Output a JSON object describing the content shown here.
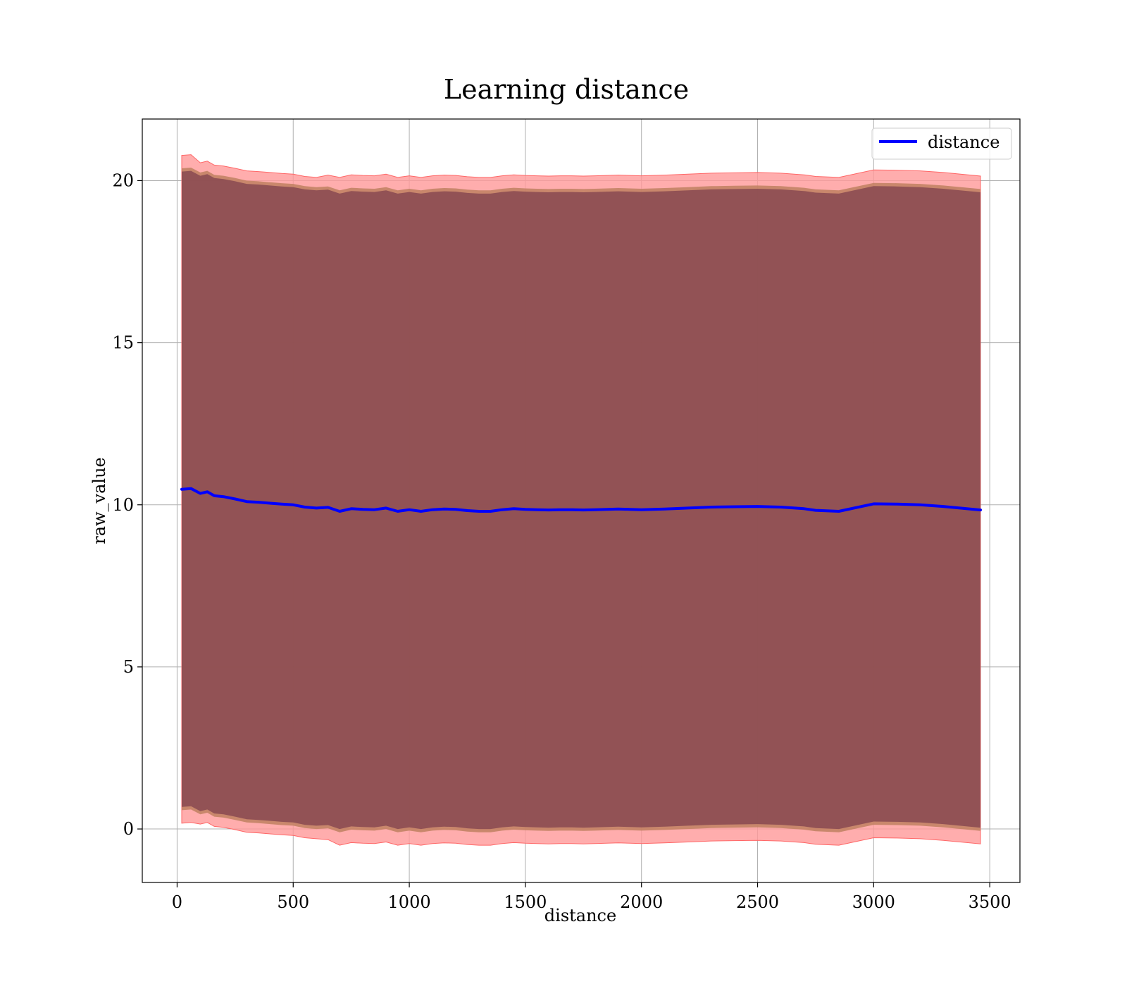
{
  "chart_data": {
    "type": "line",
    "title": "Learning distance",
    "xlabel": "distance",
    "ylabel": "raw_value",
    "xlim": [
      -150,
      3630
    ],
    "ylim": [
      -1.65,
      21.9
    ],
    "xticks": [
      0,
      500,
      1000,
      1500,
      2000,
      2500,
      3000,
      3500
    ],
    "yticks": [
      0,
      5,
      10,
      15,
      20
    ],
    "grid": true,
    "legend": {
      "position": "top-right",
      "entries": [
        "distance"
      ]
    },
    "colors": {
      "line": "#0000ff",
      "band_outer": "#ff9999",
      "band_mid": "#c08060",
      "band_inner": "#7a3c4c"
    },
    "series": [
      {
        "name": "distance",
        "x": [
          20,
          60,
          100,
          130,
          160,
          200,
          250,
          300,
          350,
          400,
          450,
          500,
          550,
          600,
          650,
          700,
          750,
          800,
          850,
          900,
          950,
          1000,
          1050,
          1100,
          1150,
          1200,
          1250,
          1300,
          1350,
          1400,
          1450,
          1500,
          1550,
          1600,
          1650,
          1700,
          1750,
          1800,
          1850,
          1900,
          1950,
          2000,
          2100,
          2200,
          2300,
          2400,
          2500,
          2600,
          2700,
          2750,
          2850,
          3000,
          3100,
          3200,
          3300,
          3460
        ],
        "y": [
          10.48,
          10.5,
          10.35,
          10.4,
          10.28,
          10.25,
          10.18,
          10.1,
          10.08,
          10.05,
          10.02,
          10.0,
          9.93,
          9.9,
          9.92,
          9.8,
          9.88,
          9.86,
          9.85,
          9.9,
          9.8,
          9.85,
          9.8,
          9.85,
          9.87,
          9.86,
          9.82,
          9.8,
          9.8,
          9.85,
          9.88,
          9.86,
          9.85,
          9.84,
          9.85,
          9.85,
          9.84,
          9.85,
          9.86,
          9.87,
          9.86,
          9.85,
          9.87,
          9.9,
          9.93,
          9.94,
          9.95,
          9.93,
          9.88,
          9.83,
          9.8,
          10.03,
          10.02,
          10.0,
          9.95,
          9.84
        ],
        "band_outer_half_width": [
          10.3,
          10.3,
          10.2,
          10.2,
          10.2,
          10.2,
          10.2,
          10.2,
          10.2,
          10.2,
          10.2,
          10.2,
          10.2,
          10.2,
          10.25,
          10.3,
          10.3,
          10.3,
          10.3,
          10.3,
          10.3,
          10.3,
          10.3,
          10.3,
          10.3,
          10.3,
          10.3,
          10.3,
          10.3,
          10.3,
          10.3,
          10.3,
          10.3,
          10.3,
          10.3,
          10.3,
          10.3,
          10.3,
          10.3,
          10.3,
          10.3,
          10.3,
          10.3,
          10.3,
          10.3,
          10.3,
          10.3,
          10.3,
          10.3,
          10.3,
          10.3,
          10.3,
          10.3,
          10.3,
          10.3,
          10.3
        ],
        "band_mid_half_width": [
          9.9,
          9.9,
          9.9,
          9.9,
          9.9,
          9.9,
          9.9,
          9.9,
          9.9,
          9.9,
          9.9,
          9.9,
          9.9,
          9.9,
          9.9,
          9.9,
          9.9,
          9.9,
          9.9,
          9.9,
          9.9,
          9.9,
          9.9,
          9.9,
          9.9,
          9.9,
          9.9,
          9.9,
          9.9,
          9.9,
          9.9,
          9.9,
          9.9,
          9.9,
          9.9,
          9.9,
          9.9,
          9.9,
          9.9,
          9.9,
          9.9,
          9.9,
          9.9,
          9.9,
          9.9,
          9.9,
          9.9,
          9.9,
          9.9,
          9.9,
          9.9,
          9.9,
          9.9,
          9.9,
          9.9,
          9.9
        ],
        "band_inner_half_width": [
          9.8,
          9.8,
          9.8,
          9.8,
          9.8,
          9.8,
          9.8,
          9.8,
          9.8,
          9.8,
          9.8,
          9.8,
          9.8,
          9.8,
          9.8,
          9.8,
          9.8,
          9.8,
          9.8,
          9.8,
          9.8,
          9.8,
          9.8,
          9.8,
          9.8,
          9.8,
          9.8,
          9.8,
          9.8,
          9.8,
          9.8,
          9.8,
          9.8,
          9.8,
          9.8,
          9.8,
          9.8,
          9.8,
          9.8,
          9.8,
          9.8,
          9.8,
          9.8,
          9.8,
          9.8,
          9.8,
          9.8,
          9.8,
          9.8,
          9.8,
          9.8,
          9.8,
          9.8,
          9.8,
          9.8,
          9.8
        ]
      }
    ]
  }
}
